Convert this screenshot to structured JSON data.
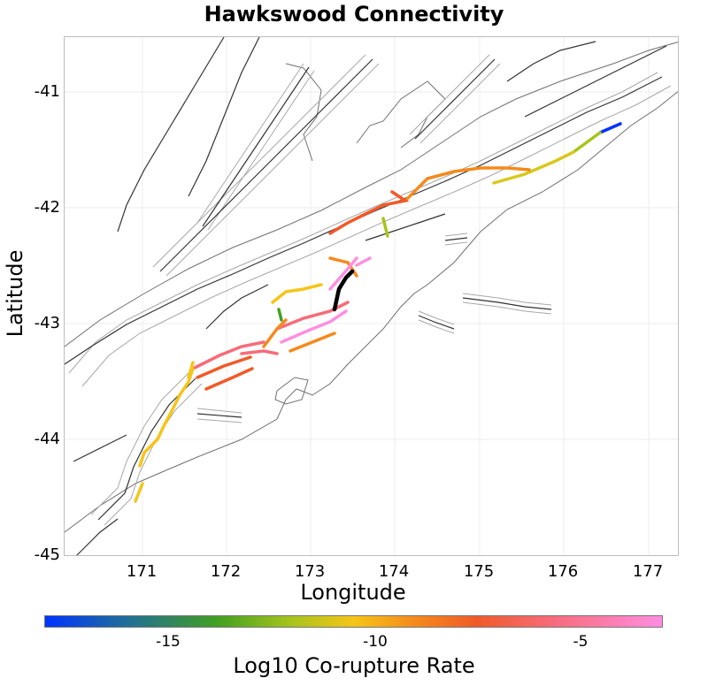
{
  "title": "Hawkswood Connectivity",
  "x_axis": {
    "label": "Longitude",
    "ticks": [
      "171",
      "172",
      "173",
      "174",
      "175",
      "176",
      "177"
    ]
  },
  "y_axis": {
    "label": "Latitude",
    "ticks": [
      "-41",
      "-42",
      "-43",
      "-44",
      "-45"
    ]
  },
  "colorbar": {
    "label": "Log10 Co-rupture Rate",
    "ticks": [
      "-15",
      "-10",
      "-5"
    ],
    "colors": [
      "#0033ff",
      "#42a020",
      "#f5c518",
      "#f58a1c",
      "#f05a28",
      "#f76b7a",
      "#ff8ee0"
    ]
  },
  "highlight_color": "#000000",
  "coastline_color": "#707070",
  "fault_color": "#333333",
  "patch_color": "#a8a8a8"
}
